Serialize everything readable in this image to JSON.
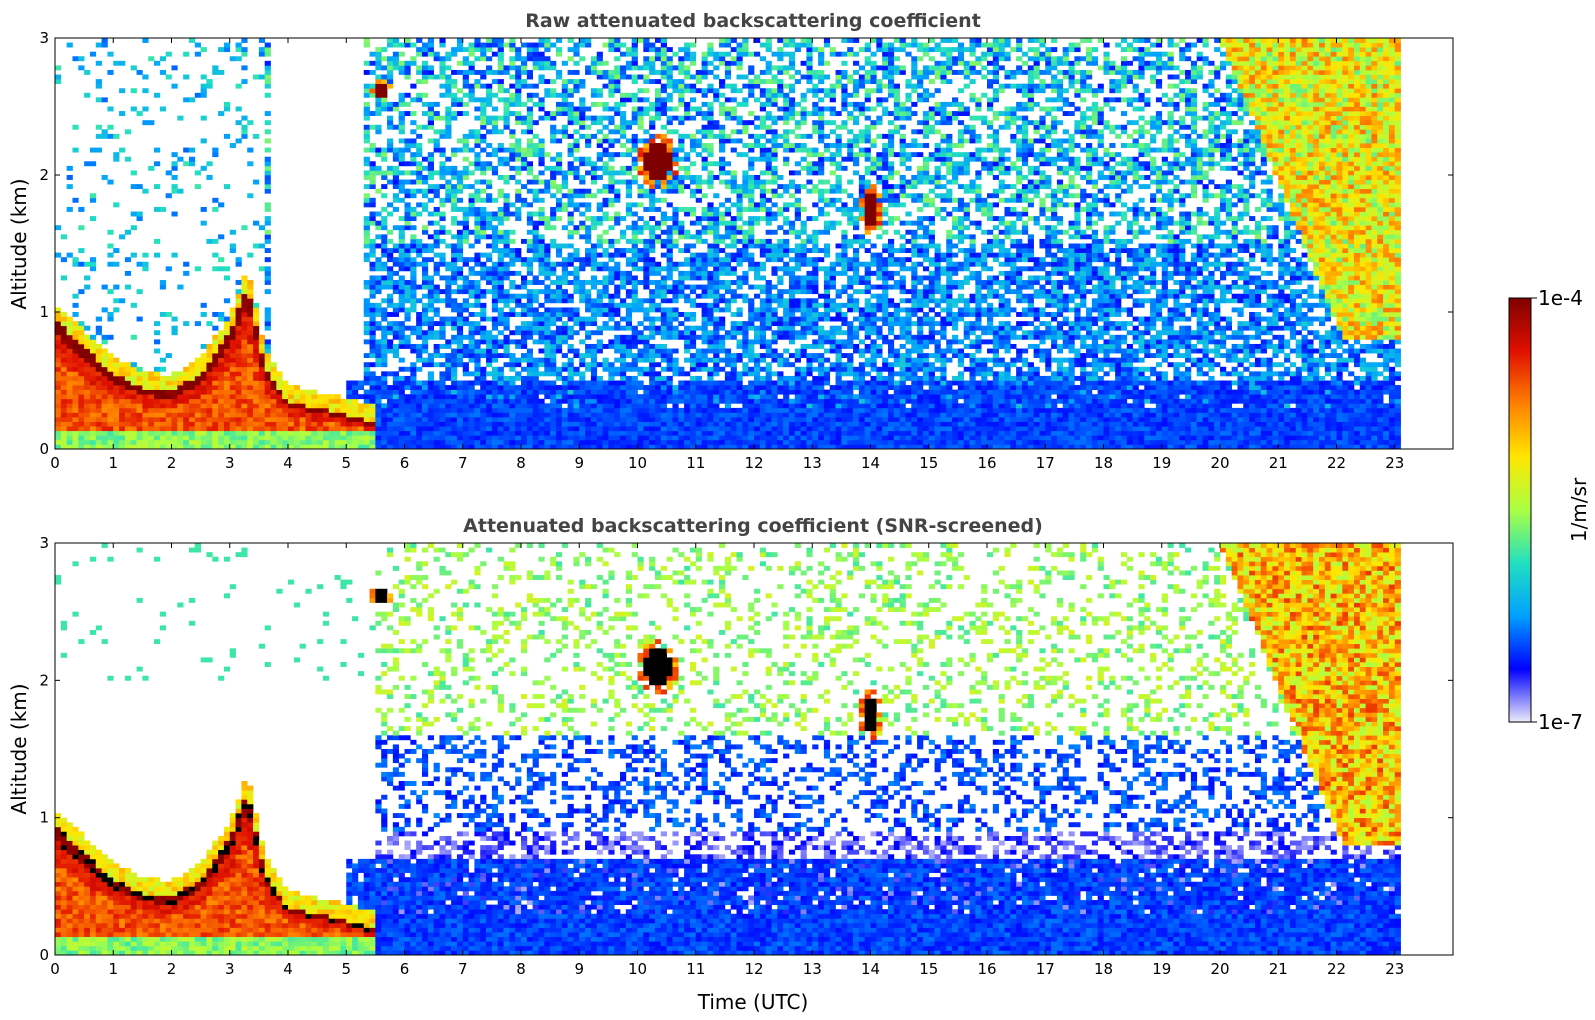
{
  "chart_data": [
    {
      "type": "heatmap",
      "title": "Raw attenuated backscattering coefficient",
      "xlabel": "",
      "ylabel": "Altitude (km)",
      "xlim": [
        0,
        24
      ],
      "ylim": [
        0,
        3
      ],
      "x_ticks": [
        "0",
        "1",
        "2",
        "3",
        "4",
        "5",
        "6",
        "7",
        "8",
        "9",
        "10",
        "11",
        "12",
        "13",
        "14",
        "15",
        "16",
        "17",
        "18",
        "19",
        "20",
        "21",
        "22",
        "23"
      ],
      "y_ticks": [
        "0",
        "1",
        "2",
        "3"
      ],
      "data_end_hour": 23.15,
      "grid": false,
      "features": [
        {
          "feature": "boundary-layer aerosol top",
          "time_hours": [
            0.0,
            0.5,
            1.0,
            1.5,
            2.0,
            2.5,
            3.0,
            3.3,
            3.6,
            4.0,
            4.5,
            5.0,
            5.4
          ],
          "altitude_km": [
            0.95,
            0.75,
            0.55,
            0.45,
            0.42,
            0.55,
            0.85,
            1.2,
            0.6,
            0.35,
            0.3,
            0.25,
            0.2
          ],
          "log10_value": -4.0
        },
        {
          "feature": "cloud",
          "time_hours": [
            5.4,
            5.8
          ],
          "altitude_km": [
            2.55,
            2.7
          ],
          "log10_value": -4.0
        },
        {
          "feature": "cloud",
          "time_hours": [
            10.0,
            10.7
          ],
          "altitude_km": [
            1.9,
            2.3
          ],
          "log10_value": -4.0
        },
        {
          "feature": "cloud",
          "time_hours": [
            13.8,
            14.2
          ],
          "altitude_km": [
            1.55,
            1.95
          ],
          "log10_value": -4.0
        },
        {
          "feature": "cirrus / cloud layer",
          "time_hours": [
            20.0,
            23.15
          ],
          "altitude_km": [
            0.6,
            3.0
          ],
          "log10_value": -5.2
        },
        {
          "feature": "cloud",
          "time_hours": [
            21.0,
            22.8
          ],
          "altitude_km": [
            1.8,
            2.6
          ],
          "log10_value": -4.0
        },
        {
          "feature": "low-level aerosol",
          "time_hours": [
            5.0,
            23.15
          ],
          "altitude_km": [
            0.0,
            0.5
          ],
          "log10_value": -6.5
        }
      ]
    },
    {
      "type": "heatmap",
      "title": "Attenuated backscattering coefficient (SNR-screened)",
      "xlabel": "Time (UTC)",
      "ylabel": "Altitude (km)",
      "xlim": [
        0,
        24
      ],
      "ylim": [
        0,
        3
      ],
      "x_ticks": [
        "0",
        "1",
        "2",
        "3",
        "4",
        "5",
        "6",
        "7",
        "8",
        "9",
        "10",
        "11",
        "12",
        "13",
        "14",
        "15",
        "16",
        "17",
        "18",
        "19",
        "20",
        "21",
        "22",
        "23"
      ],
      "y_ticks": [
        "0",
        "1",
        "2",
        "3"
      ],
      "data_end_hour": 23.15,
      "grid": false,
      "features": [
        {
          "feature": "boundary-layer aerosol top",
          "time_hours": [
            0.0,
            0.5,
            1.0,
            1.5,
            2.0,
            2.5,
            3.0,
            3.3,
            3.6,
            4.0,
            4.5,
            5.0,
            5.4
          ],
          "altitude_km": [
            0.95,
            0.75,
            0.55,
            0.45,
            0.42,
            0.55,
            0.85,
            1.2,
            0.6,
            0.35,
            0.3,
            0.25,
            0.2
          ],
          "log10_value": -4.0
        },
        {
          "feature": "cloud",
          "time_hours": [
            5.4,
            5.8
          ],
          "altitude_km": [
            2.55,
            2.7
          ],
          "log10_value": -3.8
        },
        {
          "feature": "cloud",
          "time_hours": [
            10.0,
            10.7
          ],
          "altitude_km": [
            1.9,
            2.3
          ],
          "log10_value": -3.8
        },
        {
          "feature": "cloud",
          "time_hours": [
            13.8,
            14.2
          ],
          "altitude_km": [
            1.55,
            1.95
          ],
          "log10_value": -3.8
        },
        {
          "feature": "cirrus / cloud layer",
          "time_hours": [
            20.0,
            23.15
          ],
          "altitude_km": [
            0.6,
            3.0
          ],
          "log10_value": -5.0
        },
        {
          "feature": "cloud",
          "time_hours": [
            21.0,
            22.8
          ],
          "altitude_km": [
            1.8,
            2.6
          ],
          "log10_value": -3.8
        },
        {
          "feature": "low-level aerosol",
          "time_hours": [
            5.0,
            23.15
          ],
          "altitude_km": [
            0.0,
            0.7
          ],
          "log10_value": -6.5
        }
      ]
    }
  ],
  "colorbar": {
    "label": "1/m/sr",
    "max_label": "1e-4",
    "min_label": "1e-7",
    "min": 1e-07,
    "max": 0.0001,
    "scale": "log",
    "colormap": [
      "#ecebf8",
      "#0000ff",
      "#00a0ff",
      "#22e0c0",
      "#aaff44",
      "#ffe600",
      "#ff8000",
      "#e01000",
      "#7f0000"
    ]
  }
}
